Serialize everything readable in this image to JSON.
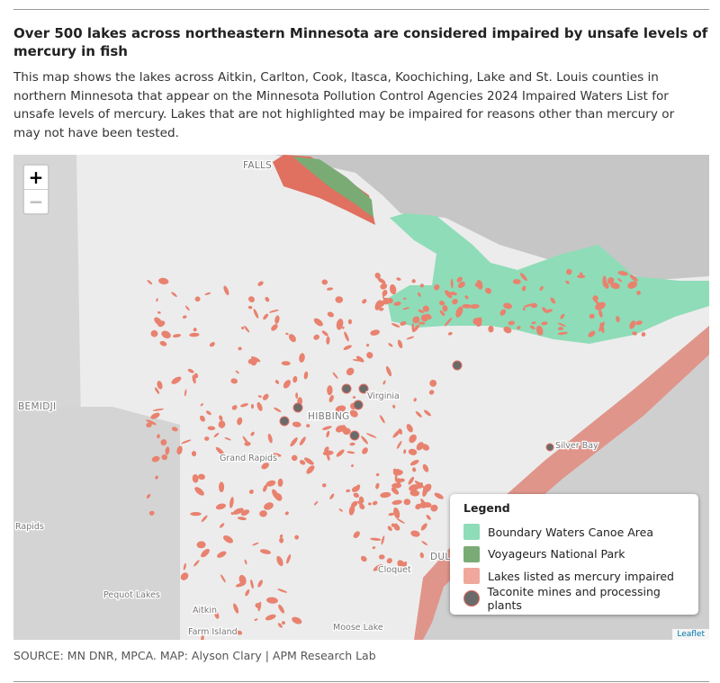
{
  "header": {
    "title": "Over 500 lakes across northeastern Minnesota are considered impaired by unsafe levels of mercury in fish",
    "description": "This map shows the lakes across Aitkin, Carlton, Cook, Itasca, Koochiching, Lake and St. Louis counties in northern Minnesota that appear on the Minnesota Pollution Control Agencies 2024 Impaired Waters List for unsafe levels of mercury. Lakes that are not highlighted may be impaired for reasons other than mercury or may not have been tested."
  },
  "map": {
    "zoom_in": "+",
    "zoom_out": "−",
    "attribution": "Leaflet",
    "labels": [
      "FALLS",
      "BEMIDJI",
      "HIBBING",
      "Virginia",
      "Grand Rapids",
      "Silver Bay",
      "Rapids",
      "Pequot Lakes",
      "Aitkin",
      "Cloquet",
      "Moose Lake",
      "Farm Island",
      "DUL"
    ]
  },
  "legend": {
    "title": "Legend",
    "items": [
      "Boundary Waters Canoe Area",
      "Voyageurs National Park",
      "Lakes listed as mercury impaired",
      "Taconite mines and processing plants"
    ]
  },
  "source": "SOURCE: MN DNR, MPCA. MAP: Alyson Clary | APM Research Lab"
}
